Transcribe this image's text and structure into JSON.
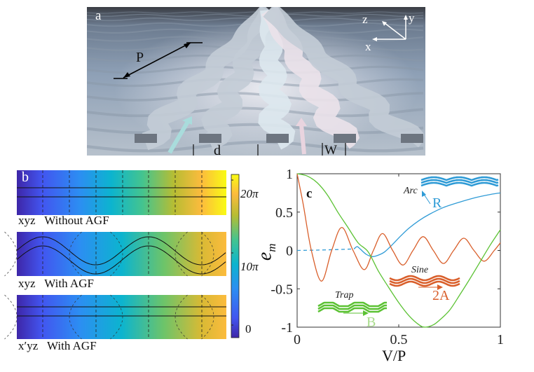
{
  "panel_a": {
    "label": "a",
    "period_label": "P",
    "spacing_label": "d",
    "width_label": "W",
    "axes": {
      "x": "x",
      "y": "y",
      "z": "z"
    }
  },
  "panel_b": {
    "label": "b",
    "strips": [
      {
        "frame": "xyz",
        "caption": "Without AGF"
      },
      {
        "frame": "xyz",
        "caption": "With AGF"
      },
      {
        "frame": "x′yz",
        "caption": "With AGF"
      }
    ],
    "colorbar": {
      "ticks": [
        "0",
        "10π",
        "20π"
      ],
      "colormap": "parula"
    }
  },
  "chart_data": {
    "type": "line",
    "panel_label": "c",
    "xlabel": "V/P",
    "ylabel": "e_m",
    "xlim": [
      0,
      1
    ],
    "ylim": [
      -1,
      1
    ],
    "xticks": [
      "0",
      "0.5",
      "1"
    ],
    "yticks": [
      "1",
      "0.5",
      "0",
      "-0.5",
      "-1"
    ],
    "grid": false,
    "series": [
      {
        "name": "Arc",
        "color": "#2f9bd6",
        "inset_param": "R",
        "dashed_segment": {
          "x": [
            0,
            0.1,
            0.2,
            0.28
          ],
          "y": [
            0,
            0.005,
            0.012,
            0.02
          ]
        },
        "x": [
          0.28,
          0.295,
          0.31,
          0.34,
          0.37,
          0.4,
          0.43,
          0.47,
          0.51,
          0.55,
          0.6,
          0.65,
          0.72,
          0.8,
          0.88,
          0.95,
          1.0
        ],
        "y": [
          0.02,
          0.05,
          0.02,
          -0.05,
          -0.08,
          -0.06,
          -0.02,
          0.08,
          0.19,
          0.29,
          0.39,
          0.47,
          0.56,
          0.63,
          0.69,
          0.73,
          0.75
        ]
      },
      {
        "name": "Sine",
        "color": "#d95f2b",
        "inset_param": "2A",
        "x": [
          0,
          0.03,
          0.07,
          0.12,
          0.17,
          0.22,
          0.275,
          0.33,
          0.375,
          0.42,
          0.47,
          0.52,
          0.57,
          0.62,
          0.67,
          0.72,
          0.77,
          0.82,
          0.87,
          0.92,
          0.97,
          1.0
        ],
        "y": [
          1,
          0.6,
          0,
          -0.4,
          0,
          0.3,
          0,
          -0.25,
          0,
          0.22,
          0,
          -0.19,
          0,
          0.18,
          0,
          -0.17,
          0,
          0.16,
          0,
          -0.14,
          0,
          0.1
        ]
      },
      {
        "name": "Trap",
        "color": "#5cc234",
        "inset_param": "B",
        "x": [
          0,
          0.05,
          0.1,
          0.15,
          0.2,
          0.25,
          0.3,
          0.35,
          0.4,
          0.45,
          0.5,
          0.55,
          0.6,
          0.63,
          0.67,
          0.7,
          0.75,
          0.8,
          0.85,
          0.9,
          0.95,
          1.0
        ],
        "y": [
          1,
          0.97,
          0.88,
          0.72,
          0.5,
          0.3,
          0.1,
          -0.02,
          -0.27,
          -0.48,
          -0.68,
          -0.85,
          -0.97,
          -1,
          -0.97,
          -0.91,
          -0.78,
          -0.58,
          -0.37,
          -0.15,
          0.07,
          0.27
        ]
      }
    ]
  }
}
